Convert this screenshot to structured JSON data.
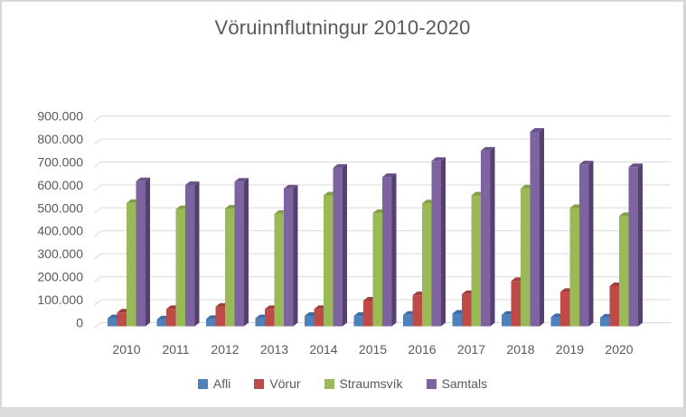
{
  "frame": {
    "background": "#FFFFFF",
    "border_color": "#D9D9D9",
    "bottom_bar_color": "#DCDCDC"
  },
  "chart_data": {
    "type": "bar",
    "variant": "3d-clustered-column",
    "title": "Vöruinnflutningur 2010-2020",
    "xlabel": "",
    "ylabel": "",
    "categories": [
      "2010",
      "2011",
      "2012",
      "2013",
      "2014",
      "2015",
      "2016",
      "2017",
      "2018",
      "2019",
      "2020"
    ],
    "series": [
      {
        "name": "Afli",
        "color": "#4E80BC",
        "side_color": "#365D94",
        "top_color": "#3F6CA5",
        "values": [
          35000,
          30000,
          32000,
          35000,
          45000,
          45000,
          50000,
          55000,
          50000,
          40000,
          38000
        ]
      },
      {
        "name": "Vörur",
        "color": "#BE4B48",
        "side_color": "#8A3431",
        "top_color": "#A03E3B",
        "values": [
          60000,
          75000,
          85000,
          75000,
          75000,
          112000,
          135000,
          140000,
          197000,
          150000,
          175000
        ]
      },
      {
        "name": "Straumsvík",
        "color": "#9ABA58",
        "side_color": "#6F8A3C",
        "top_color": "#82A046",
        "values": [
          537000,
          510000,
          513000,
          490000,
          570000,
          493000,
          535000,
          570000,
          600000,
          515000,
          480000
        ]
      },
      {
        "name": "Samtals",
        "color": "#7E63A1",
        "side_color": "#554070",
        "top_color": "#6A5389",
        "values": [
          632000,
          615000,
          630000,
          600000,
          690000,
          650000,
          720000,
          765000,
          847000,
          705000,
          693000
        ]
      }
    ],
    "ylim": [
      0,
      900000
    ],
    "ytick_step": 100000,
    "ytick_labels": [
      "0",
      "100.000",
      "200.000",
      "300.000",
      "400.000",
      "500.000",
      "600.000",
      "700.000",
      "800.000",
      "900.000"
    ],
    "grid": true,
    "legend_position": "bottom",
    "number_format": "thousands-dot",
    "text_color": "#595959",
    "gridline_color": "#D9D9D9"
  }
}
